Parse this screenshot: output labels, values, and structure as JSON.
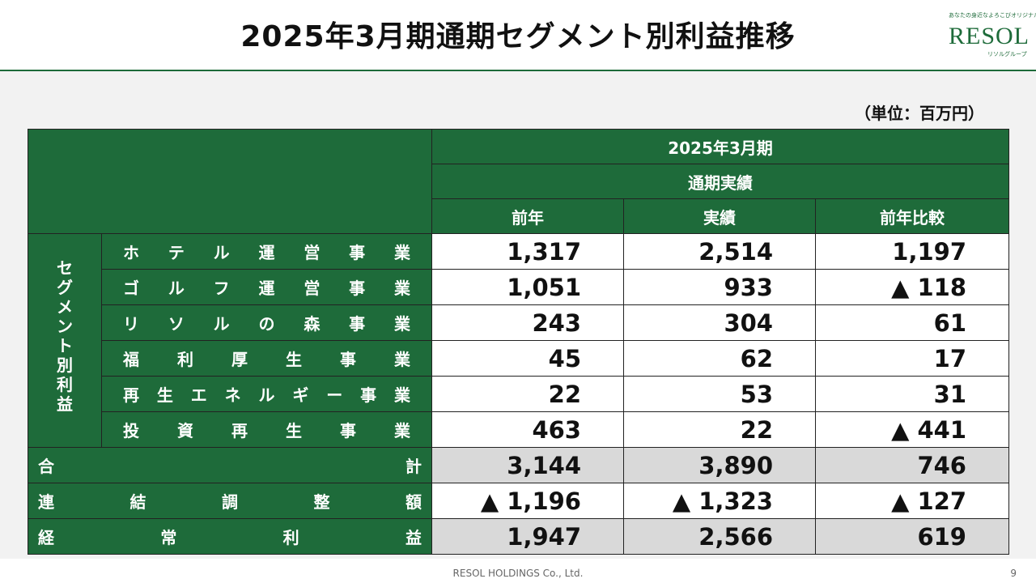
{
  "title": "2025年3月期通期セグメント別利益推移",
  "logo": {
    "tagline": "あなたの身近なよろこびオリジナル。",
    "name": "RESOL",
    "sub": "リソルグループ"
  },
  "unit": "（単位：百万円）",
  "table": {
    "period": "2025年3月期",
    "subperiod": "通期実績",
    "columns": [
      "前年",
      "実績",
      "前年比較"
    ],
    "group_label": [
      "セ",
      "グ",
      "メ",
      "ン",
      "ト",
      "別",
      "利",
      "益"
    ],
    "segments": [
      {
        "chars": [
          "ホ",
          "テ",
          "ル",
          "運",
          "営",
          "事",
          "業"
        ],
        "values": [
          "1,317",
          "2,514",
          "1,197"
        ]
      },
      {
        "chars": [
          "ゴ",
          "ル",
          "フ",
          "運",
          "営",
          "事",
          "業"
        ],
        "values": [
          "1,051",
          "933",
          "▲ 118"
        ]
      },
      {
        "chars": [
          "リ",
          "ソ",
          "ル",
          "の",
          "森",
          "事",
          "業"
        ],
        "values": [
          "243",
          "304",
          "61"
        ]
      },
      {
        "chars": [
          "福",
          "利",
          "厚",
          "生",
          "事",
          "業"
        ],
        "values": [
          "45",
          "62",
          "17"
        ]
      },
      {
        "chars": [
          "再",
          "生",
          "エ",
          "ネ",
          "ル",
          "ギ",
          "ー",
          "事",
          "業"
        ],
        "values": [
          "22",
          "53",
          "31"
        ]
      },
      {
        "chars": [
          "投",
          "資",
          "再",
          "生",
          "事",
          "業"
        ],
        "values": [
          "463",
          "22",
          "▲ 441"
        ]
      }
    ],
    "totals": [
      {
        "chars": [
          "合",
          "計"
        ],
        "values": [
          "3,144",
          "3,890",
          "746"
        ]
      },
      {
        "chars": [
          "連",
          "結",
          "調",
          "整",
          "額"
        ],
        "values": [
          "▲ 1,196",
          "▲ 1,323",
          "▲ 127"
        ]
      },
      {
        "chars": [
          "経",
          "常",
          "利",
          "益"
        ],
        "values": [
          "1,947",
          "2,566",
          "619"
        ]
      }
    ]
  },
  "footer": "RESOL HOLDINGS Co., Ltd.",
  "page_number": "9"
}
